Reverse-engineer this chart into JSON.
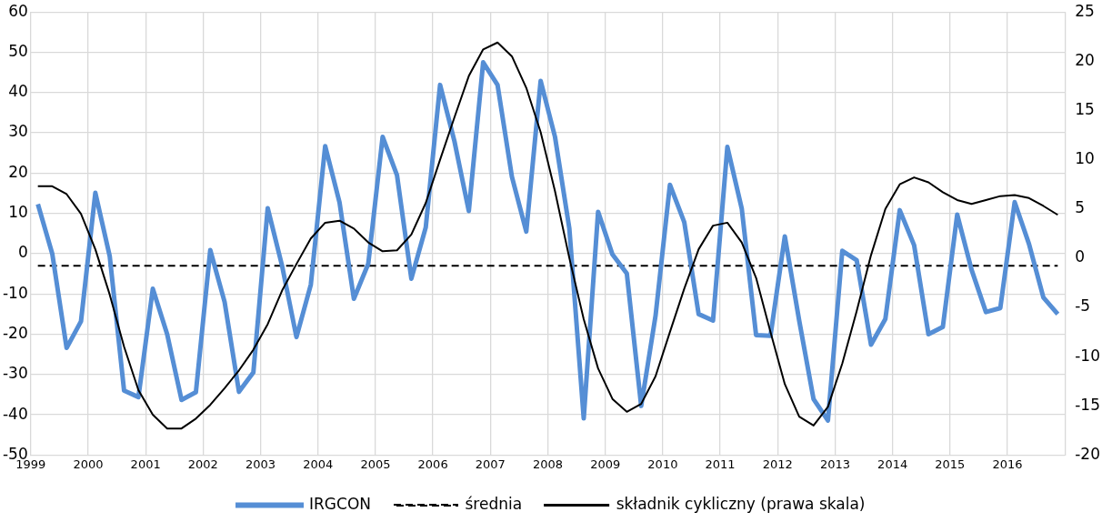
{
  "chart_data": {
    "type": "line",
    "x": [
      1999.125,
      1999.375,
      1999.625,
      1999.875,
      2000.125,
      2000.375,
      2000.625,
      2000.875,
      2001.125,
      2001.375,
      2001.625,
      2001.875,
      2002.125,
      2002.375,
      2002.625,
      2002.875,
      2003.125,
      2003.375,
      2003.625,
      2003.875,
      2004.125,
      2004.375,
      2004.625,
      2004.875,
      2005.125,
      2005.375,
      2005.625,
      2005.875,
      2006.125,
      2006.375,
      2006.625,
      2006.875,
      2007.125,
      2007.375,
      2007.625,
      2007.875,
      2008.125,
      2008.375,
      2008.625,
      2008.875,
      2009.125,
      2009.375,
      2009.625,
      2009.875,
      2010.125,
      2010.375,
      2010.625,
      2010.875,
      2011.125,
      2011.375,
      2011.625,
      2011.875,
      2012.125,
      2012.375,
      2012.625,
      2012.875,
      2013.125,
      2013.375,
      2013.625,
      2013.875,
      2014.125,
      2014.375,
      2014.625,
      2014.875,
      2015.125,
      2015.375,
      2015.625,
      2015.875,
      2016.125,
      2016.375,
      2016.625,
      2016.875
    ],
    "series": [
      {
        "name": "IRGCON",
        "color": "#558ed5",
        "values": [
          12.3,
          0,
          -23.4,
          -16.8,
          15.1,
          -0.6,
          -34,
          -35.6,
          -8.7,
          -20,
          -36.3,
          -34.4,
          0.9,
          -12,
          -34.3,
          -29.5,
          11.3,
          -3,
          -20.7,
          -7.7,
          26.7,
          12.7,
          -11.2,
          -2.5,
          29,
          19.5,
          -6.2,
          6.5,
          41.9,
          27.9,
          10.6,
          47.5,
          41.9,
          19.1,
          5.5,
          42.9,
          29,
          6.2,
          -40.9,
          10.4,
          -0.2,
          -4.9,
          -37.8,
          -15.4,
          17.1,
          7.8,
          -15,
          -16.6,
          26.5,
          11.2,
          -20.2,
          -20.4,
          4.3,
          -16.6,
          -36.1,
          -41.4,
          0.7,
          -1.6,
          -22.6,
          -16.2,
          10.8,
          2.1,
          -20,
          -18.2,
          9.7,
          -4,
          -14.5,
          -13.5,
          12.8,
          2.4,
          -10.9,
          -15
        ]
      },
      {
        "name": "średnia",
        "color": "#000000",
        "line_style": "dashed",
        "x": [
          1999.125,
          2016.875
        ],
        "values": [
          -3,
          -3
        ]
      },
      {
        "name": "składnik cykliczny (prawa skala)",
        "color": "#000000",
        "axis": "y2",
        "values": [
          7.3,
          7.3,
          6.5,
          4.5,
          0.9,
          -3.7,
          -9,
          -13.4,
          -15.9,
          -17.3,
          -17.3,
          -16.3,
          -14.9,
          -13.2,
          -11.4,
          -9.3,
          -6.7,
          -3.3,
          -0.6,
          2,
          3.6,
          3.8,
          3,
          1.6,
          0.7,
          0.8,
          2.4,
          5.6,
          10,
          14.3,
          18.5,
          21.2,
          21.9,
          20.5,
          17.3,
          12.8,
          6.8,
          0,
          -6.2,
          -11.2,
          -14.3,
          -15.6,
          -14.8,
          -12,
          -7.5,
          -3.1,
          0.9,
          3.3,
          3.6,
          1.6,
          -2,
          -7.5,
          -12.8,
          -16.1,
          -17,
          -15.1,
          -10.7,
          -5.4,
          0.3,
          5,
          7.5,
          8.2,
          7.7,
          6.7,
          5.9,
          5.5,
          5.9,
          6.3,
          6.4,
          6.1,
          5.3,
          4.4
        ]
      }
    ],
    "xlim": [
      1999,
      2017
    ],
    "xticks": [
      1999,
      2000,
      2001,
      2002,
      2003,
      2004,
      2005,
      2006,
      2007,
      2008,
      2009,
      2010,
      2011,
      2012,
      2013,
      2014,
      2015,
      2016,
      {
        "value": 2017,
        "label": null
      }
    ],
    "ylim": [
      -50,
      60
    ],
    "yticks": [
      -50,
      -40,
      -30,
      -20,
      -10,
      0,
      10,
      20,
      30,
      40,
      50,
      60
    ],
    "y2lim": [
      -20,
      25
    ],
    "y2ticks": [
      -20,
      -15,
      -10,
      -5,
      0,
      5,
      10,
      15,
      20,
      25
    ],
    "grid": true,
    "legend": "bottom",
    "marker": "none",
    "line_style": "solid"
  }
}
